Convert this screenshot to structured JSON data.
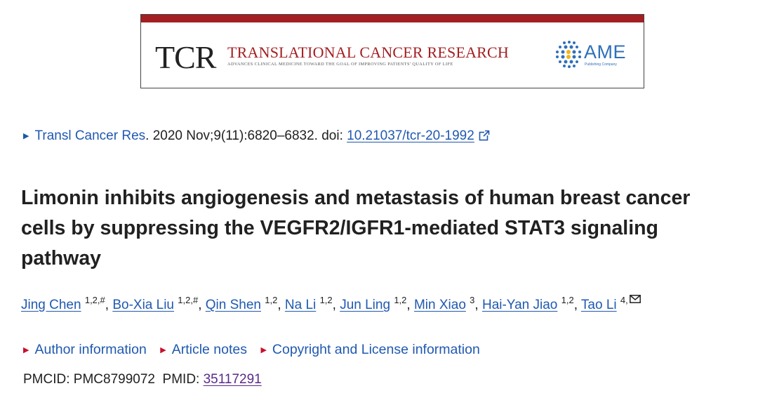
{
  "banner": {
    "tcr_mark": "TCR",
    "journal_title": "TRANSLATIONAL CANCER RESEARCH",
    "tagline": "ADVANCES CLINICAL MEDICINE TOWARD THE GOAL OF IMPROVING PATIENTS' QUALITY OF LIFE",
    "publisher_logo": "AME",
    "publisher_sub": "Publishing Company",
    "bar_color": "#a31f22",
    "publisher_color": "#2f6fba"
  },
  "citation": {
    "journal": "Transl Cancer Res",
    "details": ". 2020 Nov;9(11):6820–6832. doi: ",
    "doi": "10.21037/tcr-20-1992"
  },
  "article": {
    "title": "Limonin inhibits angiogenesis and metastasis of human breast cancer cells by suppressing the VEGFR2/IGFR1-mediated STAT3 signaling pathway"
  },
  "authors": [
    {
      "name": "Jing Chen",
      "aff": "1,2,#"
    },
    {
      "name": "Bo-Xia Liu",
      "aff": "1,2,#"
    },
    {
      "name": "Qin Shen",
      "aff": "1,2"
    },
    {
      "name": "Na Li",
      "aff": "1,2"
    },
    {
      "name": "Jun Ling",
      "aff": "1,2"
    },
    {
      "name": "Min Xiao",
      "aff": "3"
    },
    {
      "name": "Hai-Yan Jiao",
      "aff": "1,2"
    },
    {
      "name": "Tao Li",
      "aff": "4,"
    }
  ],
  "info_links": {
    "author_info": "Author information",
    "article_notes": "Article notes",
    "copyright": "Copyright and License information"
  },
  "ids": {
    "pmcid_label": "PMCID: ",
    "pmcid": "PMC8799072",
    "pmid_label": "PMID: ",
    "pmid": "35117291"
  },
  "icons": {
    "external": "external-link-icon",
    "mail": "mail-icon",
    "expand": "triangle-right-icon"
  }
}
